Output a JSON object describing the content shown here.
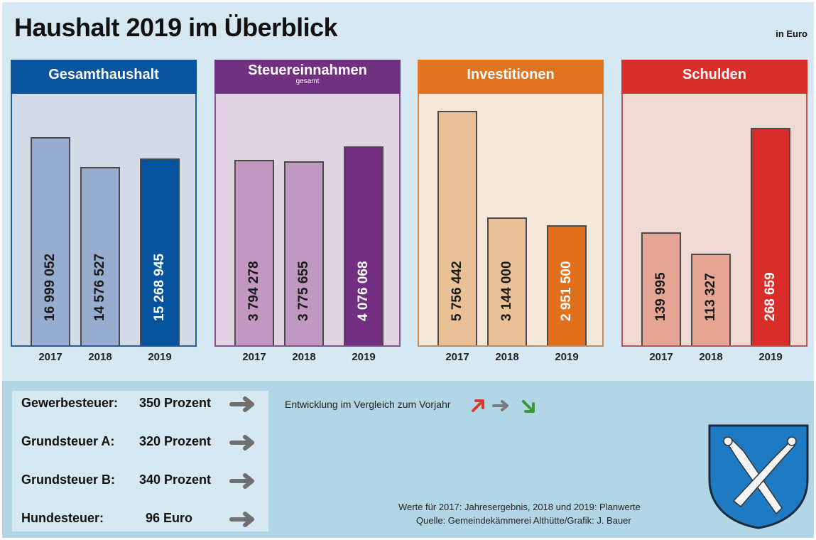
{
  "title": "Haushalt 2019 im Überblick",
  "unit_label": "in Euro",
  "chart_data": [
    {
      "type": "bar",
      "title": "Gesamthaushalt",
      "subtitle": "",
      "categories": [
        "2017",
        "2018",
        "2019"
      ],
      "values": [
        16999052,
        14576527,
        15268945
      ],
      "value_labels": [
        "16 999 052",
        "14 576 527",
        "15 268 945"
      ],
      "ylim": [
        0,
        20600000
      ],
      "colors": {
        "header": "#0b55a0",
        "panel_bg": "#d3dbe7",
        "border": "#1e5fa3",
        "bar": "#97acce",
        "bar_highlight": "#05539d",
        "label": "#1a1a1a",
        "label_highlight": "#ffffff"
      }
    },
    {
      "type": "bar",
      "title": "Steuereinnahmen",
      "subtitle": "gesamt",
      "categories": [
        "2017",
        "2018",
        "2019"
      ],
      "values": [
        3794278,
        3775655,
        4076068
      ],
      "value_labels": [
        "3 794 278",
        "3 775 655",
        "4 076 068"
      ],
      "ylim": [
        0,
        5170000
      ],
      "colors": {
        "header": "#713080",
        "panel_bg": "#e1d4e2",
        "border": "#8a4f94",
        "bar": "#c198bf",
        "bar_highlight": "#722e80",
        "label": "#1a1a1a",
        "label_highlight": "#ffffff"
      }
    },
    {
      "type": "bar",
      "title": "Investitionen",
      "subtitle": "",
      "categories": [
        "2017",
        "2018",
        "2019"
      ],
      "values": [
        5756442,
        3144000,
        2951500
      ],
      "value_labels": [
        "5 756 442",
        "3 144 000",
        "2 951 500"
      ],
      "ylim": [
        0,
        6190000
      ],
      "colors": {
        "header": "#e07420",
        "panel_bg": "#f5e7da",
        "border": "#c88a55",
        "bar": "#eac197",
        "bar_highlight": "#e1701c",
        "label": "#1a1a1a",
        "label_highlight": "#ffffff"
      }
    },
    {
      "type": "bar",
      "title": "Schulden",
      "subtitle": "",
      "categories": [
        "2017",
        "2018",
        "2019"
      ],
      "values": [
        139995,
        113327,
        268659
      ],
      "value_labels": [
        "139 995",
        "113 327",
        "268 659"
      ],
      "ylim": [
        0,
        311700
      ],
      "colors": {
        "header": "#d92e2a",
        "panel_bg": "#efd9d3",
        "border": "#c2525a",
        "bar": "#e6a695",
        "bar_highlight": "#d92d29",
        "label": "#1a1a1a",
        "label_highlight": "#ffffff"
      }
    }
  ],
  "taxes": [
    {
      "name": "Gewerbesteuer:",
      "value": "350 Prozent",
      "trend": "gleich"
    },
    {
      "name": "Grundsteuer A:",
      "value": "320 Prozent",
      "trend": "gleich"
    },
    {
      "name": "Grundsteuer B:",
      "value": "340 Prozent",
      "trend": "gleich"
    },
    {
      "name": "Hundesteuer:",
      "value": "96 Euro",
      "trend": "gleich"
    }
  ],
  "legend": {
    "text": "Entwicklung im Vergleich zum Vorjahr",
    "items": [
      {
        "icon": "arrow-up-right-icon",
        "color": "#d93a32"
      },
      {
        "icon": "arrow-right-icon",
        "color": "#7a7a7a"
      },
      {
        "icon": "arrow-down-right-icon",
        "color": "#3a9a3a"
      }
    ]
  },
  "trend_arrow_color": "#6f6f6f",
  "notes": {
    "line1": "Werte für 2017: Jahresergebnis, 2018 und 2019: Planwerte",
    "line2": "Quelle:  Gemeindekämmerei Althütte/Grafik: J. Bauer"
  },
  "crest": {
    "icon": "coat-of-arms-icon",
    "color": "#1f7ac4"
  }
}
